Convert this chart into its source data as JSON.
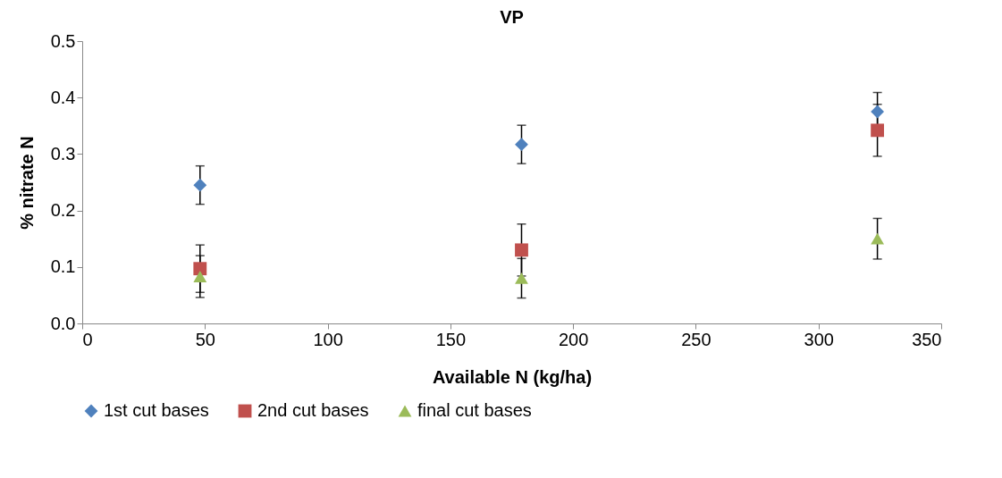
{
  "chart_data": {
    "type": "scatter",
    "title": "VP",
    "xlabel": "Available N (kg/ha)",
    "ylabel": "% nitrate N",
    "x": [
      48,
      179,
      324
    ],
    "series": [
      {
        "name": "1st cut bases",
        "color": "#4f81bd",
        "marker": "diamond",
        "values": [
          0.245,
          0.317,
          0.375
        ],
        "errors": [
          0.034,
          0.034,
          0.034
        ]
      },
      {
        "name": "2nd cut bases",
        "color": "#c0504d",
        "marker": "square",
        "values": [
          0.097,
          0.13,
          0.342
        ],
        "errors": [
          0.042,
          0.046,
          0.046
        ]
      },
      {
        "name": "final cut bases",
        "color": "#9bbb59",
        "marker": "triangle",
        "values": [
          0.083,
          0.08,
          0.15
        ],
        "errors": [
          0.037,
          0.035,
          0.036
        ]
      }
    ],
    "xlim": [
      0,
      350
    ],
    "xticks": [
      0,
      50,
      100,
      150,
      200,
      250,
      300,
      350
    ],
    "ylim": [
      0,
      0.5
    ],
    "yticks": [
      {
        "value": 0,
        "label": "0.0"
      },
      0.1,
      0.2,
      0.3,
      0.4,
      0.5
    ],
    "grid": false,
    "legend": "bottom"
  }
}
